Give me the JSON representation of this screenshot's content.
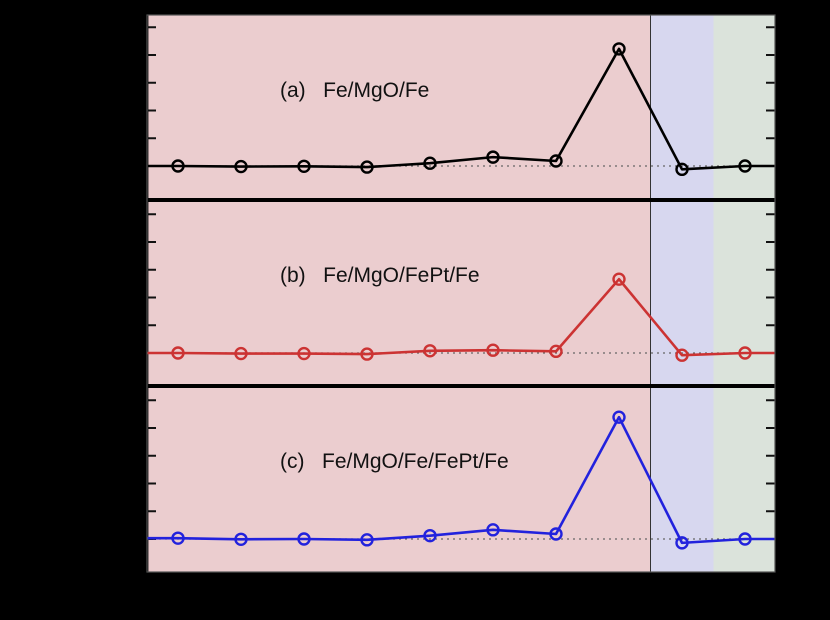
{
  "chart_data": {
    "type": "line",
    "layout": "3 vertically stacked panels sharing x-axis, no axis tick labels visible",
    "x": [
      1,
      2,
      3,
      4,
      5,
      6,
      7,
      8,
      9,
      10
    ],
    "y_tick_count": 6,
    "y_range": [
      -0.9,
      5.4
    ],
    "zero_line": "dotted gray at y=0",
    "regions": [
      {
        "name": "region-1",
        "x_from": 0.53,
        "x_to": 8.5,
        "color": "#ebcdcf"
      },
      {
        "name": "region-2",
        "x_from": 8.5,
        "x_to": 9.5,
        "color": "#d7d7ef"
      },
      {
        "name": "region-3",
        "x_from": 9.5,
        "x_to": 10.47,
        "color": "#dbe3db"
      }
    ],
    "region_divider_x": 8.5,
    "panels": [
      {
        "label": "(a)   Fe/MgO/Fe",
        "series": {
          "name": "Fe/MgO/Fe",
          "color": "#000000",
          "values": [
            0.0,
            -0.02,
            -0.01,
            -0.04,
            0.1,
            0.32,
            0.18,
            4.22,
            -0.12,
            0.0
          ]
        }
      },
      {
        "label": "(b)   Fe/MgO/FePt/Fe",
        "series": {
          "name": "Fe/MgO/FePt/Fe",
          "color": "#cc3333",
          "values": [
            0.0,
            -0.02,
            -0.02,
            -0.04,
            0.08,
            0.1,
            0.06,
            2.66,
            -0.08,
            0.0
          ]
        }
      },
      {
        "label": "(c)   Fe/MgO/Fe/FePt/Fe",
        "series": {
          "name": "Fe/MgO/Fe/FePt/Fe",
          "color": "#2222dd",
          "values": [
            0.03,
            -0.01,
            0.0,
            -0.03,
            0.12,
            0.33,
            0.18,
            4.39,
            -0.14,
            0.0
          ]
        }
      }
    ],
    "title": "",
    "xlabel": "",
    "ylabel": "",
    "legend": "none (inline panel labels)"
  }
}
